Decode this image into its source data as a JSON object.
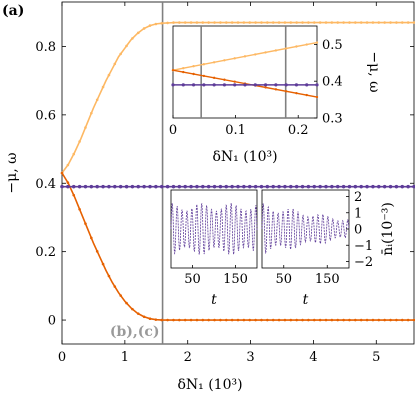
{
  "chart_data": [
    {
      "type": "line",
      "panel_label": "(a)",
      "xlabel": "δN₁ (10³)",
      "ylabel": "−μ, ω",
      "xlim": [
        0,
        5.6
      ],
      "ylim": [
        -0.07,
        0.93
      ],
      "x_ticks": [
        "0",
        "1",
        "2",
        "3",
        "4",
        "5"
      ],
      "y_ticks": [
        "0",
        "0.2",
        "0.4",
        "0.6",
        "0.8"
      ],
      "vline": {
        "x": 1.6,
        "label": "(b),(c)"
      },
      "series": [
        {
          "color": "#fdb863",
          "x": [
            0,
            0.1,
            0.2,
            0.3,
            0.4,
            0.5,
            0.6,
            0.7,
            0.8,
            0.9,
            1.0,
            1.1,
            1.2,
            1.3,
            1.4,
            1.5,
            1.6,
            1.7,
            1.8,
            1.9,
            2.0,
            2.2,
            2.5,
            3,
            3.5,
            4,
            4.5,
            5,
            5.6
          ],
          "y": [
            0.43,
            0.455,
            0.49,
            0.53,
            0.575,
            0.62,
            0.66,
            0.7,
            0.735,
            0.77,
            0.795,
            0.82,
            0.838,
            0.852,
            0.861,
            0.866,
            0.868,
            0.869,
            0.87,
            0.87,
            0.87,
            0.87,
            0.87,
            0.87,
            0.87,
            0.87,
            0.87,
            0.87,
            0.87
          ]
        },
        {
          "color": "#e66101",
          "x": [
            0,
            0.1,
            0.2,
            0.3,
            0.4,
            0.5,
            0.6,
            0.7,
            0.8,
            0.9,
            1.0,
            1.1,
            1.2,
            1.3,
            1.4,
            1.5,
            1.6,
            1.7,
            1.8,
            1.9,
            2.0,
            2.2,
            2.5,
            3,
            3.5,
            4,
            4.5,
            5,
            5.6
          ],
          "y": [
            0.43,
            0.4,
            0.36,
            0.315,
            0.27,
            0.225,
            0.185,
            0.145,
            0.11,
            0.08,
            0.055,
            0.035,
            0.02,
            0.01,
            0.004,
            0.001,
            0,
            0,
            0,
            0,
            0,
            0,
            0,
            0,
            0,
            0,
            0,
            0,
            0
          ]
        },
        {
          "color": "#5e3c99",
          "x": [
            0,
            0.5,
            1,
            1.5,
            2,
            2.5,
            3,
            3.5,
            4,
            4.5,
            5,
            5.6
          ],
          "y": [
            0.39,
            0.39,
            0.39,
            0.39,
            0.39,
            0.39,
            0.39,
            0.39,
            0.39,
            0.39,
            0.39,
            0.39
          ]
        }
      ]
    },
    {
      "type": "line",
      "position": "top-right-inset",
      "xlabel": "δN₁ (10³)",
      "ylabel": "−μ, ω",
      "xlim": [
        0,
        0.23
      ],
      "ylim": [
        0.3,
        0.55
      ],
      "x_ticks": [
        "0",
        "0.1",
        "0.2"
      ],
      "y_ticks": [
        "0.3",
        "0.4",
        "0.5"
      ],
      "vlines": [
        0.045,
        0.18
      ],
      "series": [
        {
          "color": "#fdb863",
          "x": [
            0,
            0.23
          ],
          "y": [
            0.43,
            0.505
          ]
        },
        {
          "color": "#e66101",
          "x": [
            0,
            0.23
          ],
          "y": [
            0.43,
            0.357
          ]
        },
        {
          "color": "#5e3c99",
          "x": [
            0,
            0.23
          ],
          "y": [
            0.39,
            0.39
          ]
        }
      ]
    },
    {
      "type": "line",
      "position": "bottom-right-insets",
      "xlabel": "t",
      "ylabel": "n̄ᵢ(10⁻³)",
      "ylim": [
        -2.4,
        2.4
      ],
      "y_ticks": [
        "−2",
        "−1",
        "0",
        "1",
        "2"
      ],
      "panels": [
        {
          "x_ticks": [
            "50",
            "150"
          ],
          "xlim": [
            0,
            200
          ],
          "amplitude_start": 1.6,
          "amplitude_end": 1.6
        },
        {
          "x_ticks": [
            "50",
            "150"
          ],
          "xlim": [
            0,
            200
          ],
          "amplitude_start": 1.6,
          "amplitude_end": 0.6
        }
      ]
    }
  ]
}
